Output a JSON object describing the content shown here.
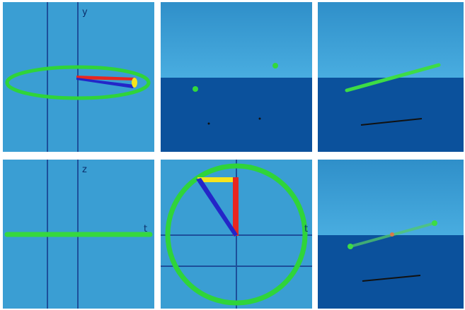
{
  "panels": [
    {
      "axis_labels": [
        "y"
      ]
    },
    {
      "axis_labels": []
    },
    {
      "axis_labels": []
    },
    {
      "axis_labels": [
        "z",
        "t"
      ]
    },
    {
      "axis_labels": [
        "t"
      ]
    },
    {
      "axis_labels": []
    }
  ]
}
